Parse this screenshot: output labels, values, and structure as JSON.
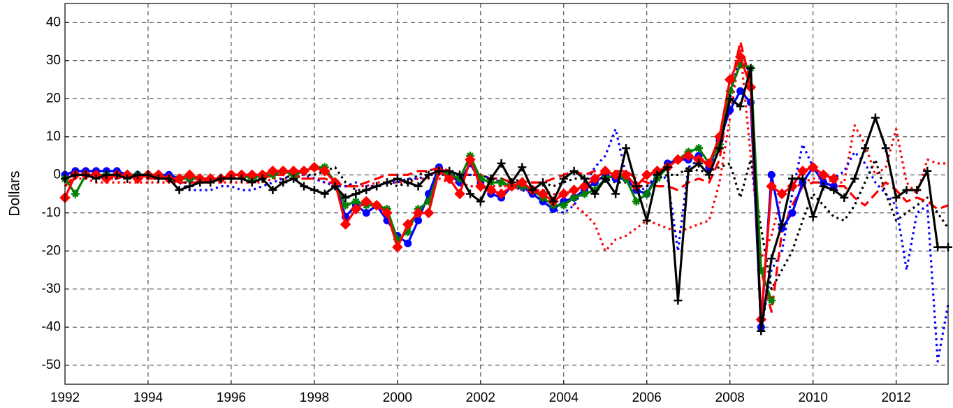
{
  "chart_data": {
    "type": "line",
    "y_label": "Dollars",
    "xlim": [
      1992,
      2013.25
    ],
    "xticks": [
      1992,
      1994,
      1996,
      1998,
      2000,
      2002,
      2004,
      2006,
      2008,
      2010,
      2012
    ],
    "ylim": [
      -55,
      45
    ],
    "yticks": [
      -50,
      -40,
      -30,
      -20,
      -10,
      0,
      10,
      20,
      30,
      40
    ],
    "grid": true,
    "x": [
      1992,
      1992.25,
      1992.5,
      1992.75,
      1993,
      1993.25,
      1993.5,
      1993.75,
      1994,
      1994.25,
      1994.5,
      1994.75,
      1995,
      1995.25,
      1995.5,
      1995.75,
      1996,
      1996.25,
      1996.5,
      1996.75,
      1997,
      1997.25,
      1997.5,
      1997.75,
      1998,
      1998.25,
      1998.5,
      1998.75,
      1999,
      1999.25,
      1999.5,
      1999.75,
      2000,
      2000.25,
      2000.5,
      2000.75,
      2001,
      2001.25,
      2001.5,
      2001.75,
      2002,
      2002.25,
      2002.5,
      2002.75,
      2003,
      2003.25,
      2003.5,
      2003.75,
      2004,
      2004.25,
      2004.5,
      2004.75,
      2005,
      2005.25,
      2005.5,
      2005.75,
      2006,
      2006.25,
      2006.5,
      2006.75,
      2007,
      2007.25,
      2007.5,
      2007.75,
      2008,
      2008.25,
      2008.5,
      2008.75,
      2009,
      2009.25,
      2009.5,
      2009.75,
      2010,
      2010.25,
      2010.5,
      2010.75,
      2011,
      2011.25,
      2011.5,
      2011.75,
      2012,
      2012.25,
      2012.5,
      2012.75,
      2013,
      2013.25
    ],
    "series": [
      {
        "color": "#ff0000",
        "dash": "dotted",
        "values": [
          -3,
          -1,
          -1,
          -2,
          -2,
          -2,
          -2,
          -2,
          -2,
          -2,
          -2,
          -2,
          -2,
          -2,
          -2,
          -2,
          -2,
          -2,
          -2,
          -2,
          -1,
          -1,
          -1,
          -1,
          -1,
          -2,
          -2,
          -3,
          -3,
          -3,
          -2,
          -2,
          -2,
          -2,
          -1,
          -1,
          -1,
          -2,
          -2,
          -3,
          -3,
          -3,
          -3,
          -3,
          -4,
          -4,
          -4,
          -5,
          -6,
          -8,
          -10,
          -13,
          -20,
          -17,
          -16,
          -14,
          -12,
          -13,
          -14,
          -15,
          -14,
          -13,
          -12,
          -2,
          15,
          33,
          5,
          -22,
          -16,
          -5,
          -4,
          -2,
          -1,
          -1,
          -2,
          -2,
          13,
          8,
          0,
          2,
          12,
          -2,
          -5,
          4,
          3,
          3
        ]
      },
      {
        "color": "#0000ff",
        "dash": "dotted",
        "values": [
          0,
          0,
          0,
          0,
          -1,
          -1,
          0,
          0,
          0,
          -1,
          -1,
          -2,
          -4,
          -4,
          -4,
          -3,
          -3,
          -4,
          -4,
          -3,
          -2,
          -1,
          0,
          0,
          -1,
          -2,
          -3,
          -3,
          -2,
          -3,
          -3,
          -2,
          -2,
          -1,
          -1,
          0,
          0,
          0,
          0,
          0,
          0,
          -1,
          -2,
          -3,
          -4,
          -5,
          -7,
          -9,
          -10,
          -8,
          -3,
          2,
          5,
          12,
          0,
          -5,
          -3,
          0,
          -1,
          -20,
          2,
          4,
          3,
          6,
          20,
          32,
          26,
          -41,
          -25,
          -20,
          -5,
          8,
          2,
          0,
          -1,
          1,
          6,
          3,
          -2,
          -5,
          -8,
          -25,
          -10,
          -8,
          -49,
          -34
        ]
      },
      {
        "color": "#000000",
        "dash": "dotted",
        "values": [
          0,
          0,
          1,
          0,
          0,
          0,
          -1,
          0,
          0,
          -1,
          -1,
          -2,
          -2,
          -2,
          -1,
          -1,
          -1,
          0,
          -1,
          -1,
          0,
          0,
          -1,
          0,
          0,
          1,
          2,
          -2,
          -4,
          -4,
          -3,
          -2,
          -3,
          -2,
          0,
          1,
          2,
          1,
          0,
          0,
          0,
          -1,
          -1,
          -2,
          -1,
          -2,
          -2,
          -3,
          -2,
          -1,
          -1,
          -1,
          -1,
          -2,
          -2,
          -3,
          -3,
          -1,
          0,
          0,
          2,
          1,
          1,
          2,
          3,
          -6,
          4,
          -14,
          -30,
          -25,
          -20,
          -12,
          -5,
          -8,
          -11,
          -12,
          -8,
          -2,
          4,
          -5,
          -12,
          -10,
          -8,
          -6,
          -10,
          -14
        ]
      },
      {
        "color": "#ff0000",
        "dash": "dashed",
        "values": [
          -3,
          0,
          0,
          0,
          -1,
          -1,
          0,
          -1,
          -1,
          -1,
          -1,
          -2,
          -2,
          -2,
          -1,
          -1,
          -1,
          -1,
          0,
          -1,
          0,
          0,
          0,
          -1,
          -1,
          -1,
          -2,
          -3,
          -3,
          -2,
          -1,
          0,
          0,
          0,
          1,
          1,
          2,
          1,
          0,
          0,
          0,
          -1,
          -1,
          -2,
          -2,
          -2,
          -2,
          -1,
          0,
          1,
          0,
          1,
          0,
          1,
          1,
          -1,
          -2,
          -3,
          -3,
          -4,
          -2,
          -1,
          -2,
          4,
          22,
          35,
          24,
          -25,
          -36,
          -15,
          -8,
          -3,
          -2,
          -2,
          -3,
          -3,
          -6,
          -8,
          -5,
          -2,
          -4,
          -7,
          -6,
          -7,
          -9,
          -8
        ]
      },
      {
        "color": "#0000ff",
        "dash": "solid",
        "marker": "circle",
        "values": [
          0,
          1,
          1,
          1,
          1,
          1,
          0,
          0,
          0,
          0,
          0,
          -1,
          -1,
          -1,
          -1,
          -1,
          0,
          0,
          0,
          0,
          1,
          1,
          1,
          1,
          2,
          1,
          -2,
          -11,
          -8,
          -10,
          -8,
          -12,
          -16,
          -18,
          -12,
          -5,
          2,
          0,
          -2,
          3,
          -2,
          -5,
          -6,
          -3,
          -3,
          -5,
          -7,
          -9,
          -7,
          -6,
          -4,
          -2,
          0,
          -1,
          -1,
          -4,
          -5,
          0,
          3,
          4,
          4,
          5,
          2,
          9,
          17,
          22,
          19,
          -40,
          0,
          -14,
          -10,
          -2,
          2,
          -2,
          -3,
          null,
          null,
          null,
          null,
          null,
          null,
          null,
          null,
          null,
          null,
          null
        ]
      },
      {
        "color": "#008000",
        "dash": "solid",
        "marker": "star",
        "values": [
          -1,
          -5,
          0,
          0,
          0,
          0,
          0,
          0,
          0,
          0,
          -1,
          -1,
          -1,
          -1,
          -1,
          -1,
          0,
          0,
          -1,
          0,
          0,
          1,
          0,
          1,
          2,
          2,
          -2,
          -8,
          -7,
          -8,
          -8,
          -9,
          -17,
          -15,
          -9,
          -7,
          1,
          0,
          -1,
          5,
          -1,
          -2,
          -2,
          -3,
          -3,
          -4,
          -6,
          -8,
          -8,
          -6,
          -5,
          -4,
          -1,
          0,
          -1,
          -7,
          -5,
          -1,
          2,
          4,
          6,
          7,
          3,
          8,
          22,
          29,
          28,
          -25,
          -33,
          null,
          null,
          null,
          null,
          null,
          null,
          null,
          null,
          null,
          null,
          null,
          null,
          null,
          null,
          null,
          null,
          null
        ]
      },
      {
        "color": "#ff0000",
        "dash": "solid",
        "marker": "diamond",
        "values": [
          -6,
          0,
          0,
          0,
          -1,
          0,
          0,
          -1,
          0,
          0,
          -1,
          -1,
          0,
          -1,
          -1,
          -1,
          0,
          0,
          0,
          0,
          1,
          1,
          1,
          1,
          2,
          1,
          -2,
          -13,
          -9,
          -7,
          -8,
          -10,
          -19,
          -13,
          -10,
          -10,
          1,
          -1,
          -5,
          4,
          -3,
          -4,
          -5,
          -3,
          -2,
          -4,
          -5,
          -7,
          -5,
          -4,
          -3,
          -1,
          1,
          0,
          0,
          -3,
          0,
          1,
          2,
          4,
          5,
          4,
          3,
          10,
          25,
          31,
          23,
          -38,
          -3,
          -5,
          -3,
          1,
          2,
          0,
          -1,
          null,
          null,
          null,
          null,
          null,
          null,
          null,
          null,
          null,
          null,
          null
        ]
      },
      {
        "color": "#000000",
        "dash": "solid",
        "marker": "plus",
        "values": [
          -1,
          0,
          0,
          -1,
          0,
          0,
          -1,
          0,
          0,
          -1,
          -1,
          -4,
          -3,
          -2,
          -2,
          -1,
          -1,
          -1,
          -2,
          -1,
          -4,
          -2,
          -1,
          -3,
          -4,
          -5,
          -3,
          -6,
          -5,
          -4,
          -3,
          -2,
          -1,
          -2,
          -3,
          0,
          1,
          1,
          0,
          -5,
          -7,
          -1,
          3,
          -2,
          2,
          -4,
          -2,
          -7,
          -1,
          1,
          -1,
          -5,
          -1,
          -5,
          7,
          -3,
          -12,
          0,
          2,
          -33,
          1,
          3,
          0,
          7,
          20,
          18,
          28,
          -41,
          -22,
          -13,
          -1,
          -1,
          -11,
          -3,
          -4,
          -6,
          -1,
          7,
          15,
          7,
          -6,
          -4,
          -4,
          1,
          -19,
          -19
        ]
      }
    ]
  }
}
